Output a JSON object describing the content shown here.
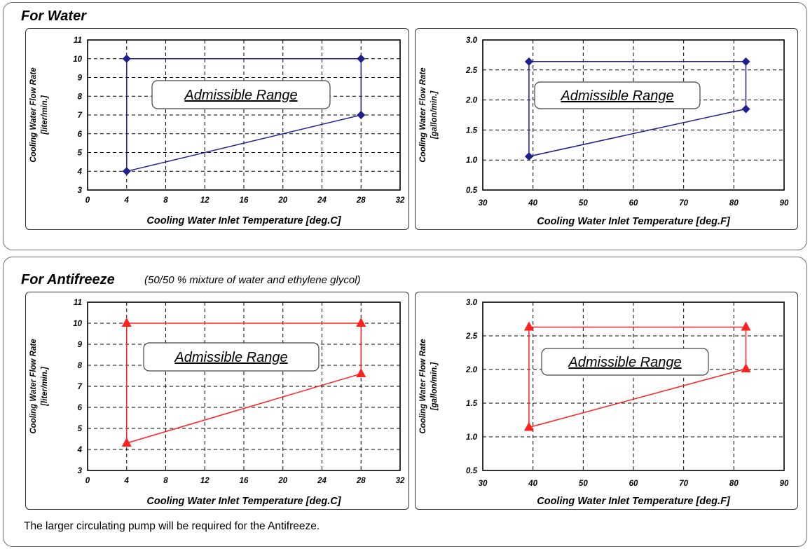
{
  "water": {
    "title": "For Water"
  },
  "antifreeze": {
    "title": "For Antifreeze",
    "subtitle": "(50/50 % mixture of water and ethylene glycol)"
  },
  "footnote": "The larger circulating pump will be required for the Antifreeze.",
  "chart_data": [
    {
      "id": "water-c",
      "type": "line",
      "xlabel": "Cooling Water Inlet Temperature  [deg.C]",
      "ylabel": "Cooling Water Flow Rate",
      "ylabel2": "[liter/min.]",
      "xlim": [
        0,
        32
      ],
      "ylim": [
        3,
        11
      ],
      "xticks": [
        "0",
        "4",
        "8",
        "12",
        "16",
        "20",
        "24",
        "28",
        "32"
      ],
      "yticks": [
        "3",
        "4",
        "5",
        "6",
        "7",
        "8",
        "9",
        "10",
        "11"
      ],
      "grid": true,
      "annotation": "Admissible Range",
      "marker": "diamond",
      "color": "#1f1f8f",
      "series": [
        {
          "x": [
            4,
            4,
            28,
            28,
            4
          ],
          "y": [
            4,
            10,
            10,
            7,
            4
          ]
        }
      ]
    },
    {
      "id": "water-f",
      "type": "line",
      "xlabel": "Cooling Water Inlet Temperature  [deg.F]",
      "ylabel": "Cooling Water Flow Rate",
      "ylabel2": "[gallon/min.]",
      "xlim": [
        30,
        90
      ],
      "ylim": [
        0.5,
        3.0
      ],
      "xticks": [
        "30",
        "40",
        "50",
        "60",
        "70",
        "80",
        "90"
      ],
      "yticks": [
        "0.5",
        "1.0",
        "1.5",
        "2.0",
        "2.5",
        "3.0"
      ],
      "grid": true,
      "annotation": "Admissible Range",
      "marker": "diamond",
      "color": "#1f1f8f",
      "series": [
        {
          "x": [
            39.2,
            39.2,
            82.4,
            82.4,
            39.2
          ],
          "y": [
            1.06,
            2.64,
            2.64,
            1.85,
            1.06
          ]
        }
      ]
    },
    {
      "id": "anti-c",
      "type": "line",
      "xlabel": "Cooling Water Inlet Temperature  [deg.C]",
      "ylabel": "Cooling Water Flow Rate",
      "ylabel2": "[liter/min.]",
      "xlim": [
        0,
        32
      ],
      "ylim": [
        3,
        11
      ],
      "xticks": [
        "0",
        "4",
        "8",
        "12",
        "16",
        "20",
        "24",
        "28",
        "32"
      ],
      "yticks": [
        "3",
        "4",
        "5",
        "6",
        "7",
        "8",
        "9",
        "10",
        "11"
      ],
      "grid": true,
      "annotation": "Admissible Range",
      "marker": "triangle",
      "color": "#ff2020",
      "series": [
        {
          "x": [
            4,
            4,
            28,
            28,
            4
          ],
          "y": [
            4.3,
            10,
            10,
            7.6,
            4.3
          ]
        }
      ]
    },
    {
      "id": "anti-f",
      "type": "line",
      "xlabel": "Cooling Water Inlet Temperature  [deg.F]",
      "ylabel": "Cooling Water Flow Rate",
      "ylabel2": "[gallon/min.]",
      "xlim": [
        30,
        90
      ],
      "ylim": [
        0.5,
        3.0
      ],
      "xticks": [
        "30",
        "40",
        "50",
        "60",
        "70",
        "80",
        "90"
      ],
      "yticks": [
        "0.5",
        "1.0",
        "1.5",
        "2.0",
        "2.5",
        "3.0"
      ],
      "grid": true,
      "annotation": "Admissible Range",
      "marker": "triangle",
      "color": "#ff2020",
      "series": [
        {
          "x": [
            39.2,
            39.2,
            82.4,
            82.4,
            39.2
          ],
          "y": [
            1.14,
            2.63,
            2.63,
            2.01,
            1.14
          ]
        }
      ]
    }
  ]
}
